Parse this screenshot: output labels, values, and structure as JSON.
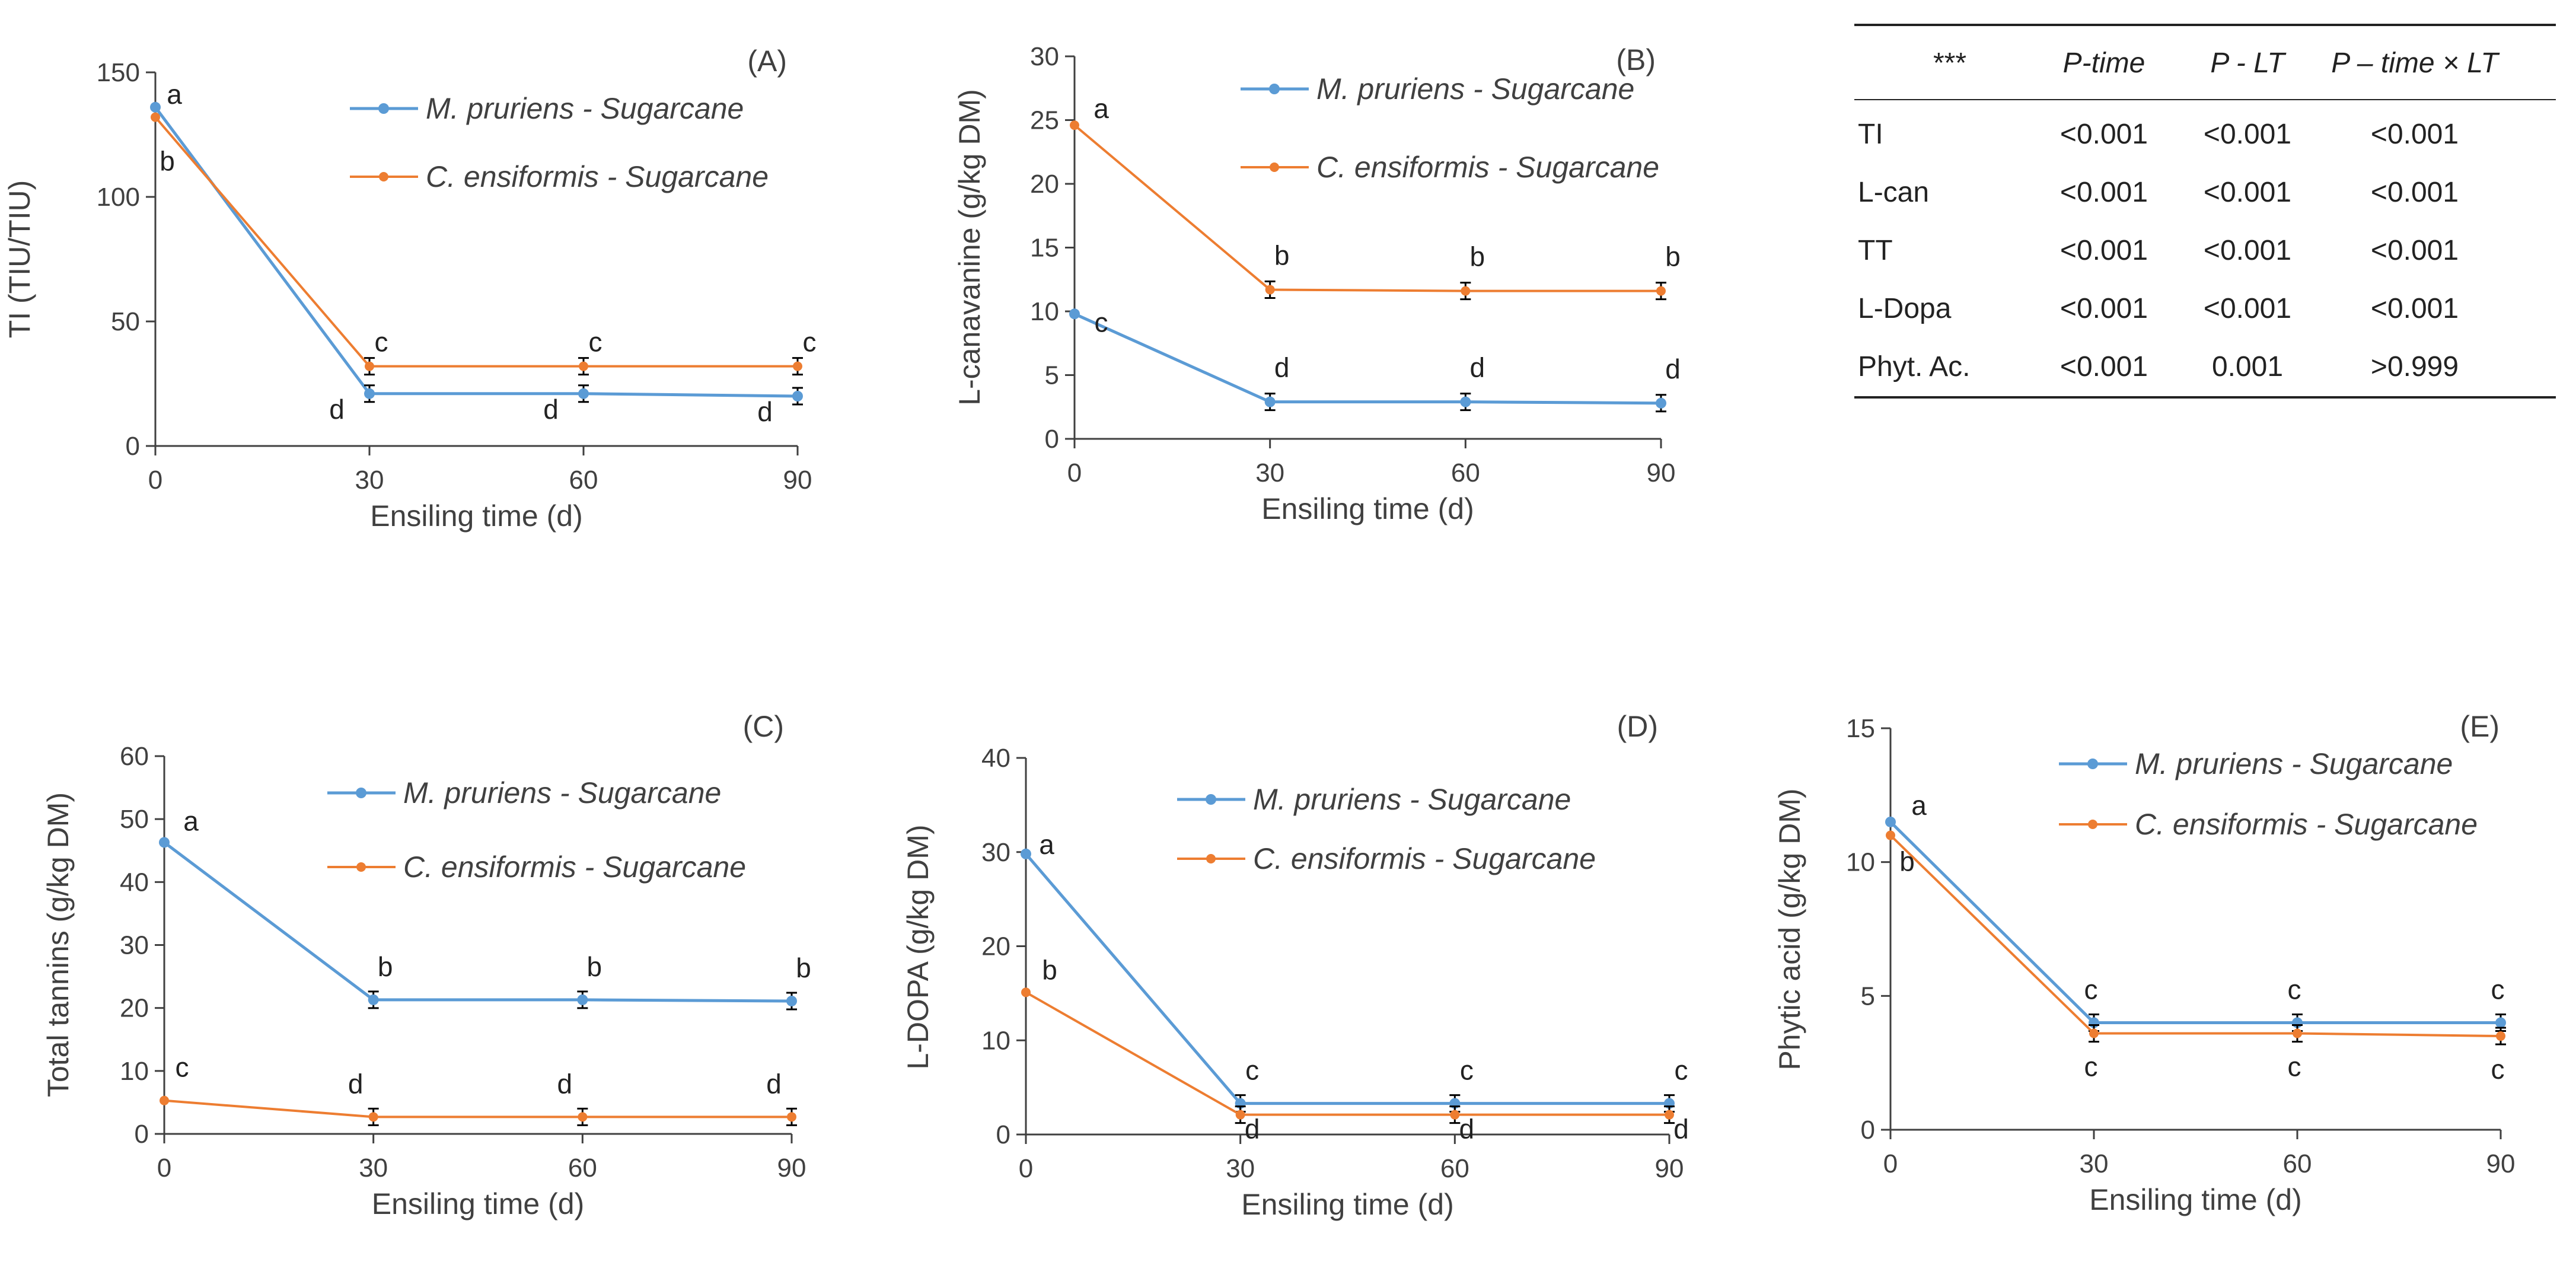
{
  "colors": {
    "m_pruriens": "#5B9BD5",
    "c_ensiformis": "#ED7D31",
    "axis": "#404040",
    "text": "#404040"
  },
  "chart_data": [
    {
      "id": "A",
      "type": "line",
      "panel_label": "(A)",
      "title": "",
      "xlabel": "Ensiling time (d)",
      "ylabel": "TI (TIU/TIU)",
      "x": [
        0,
        30,
        60,
        90
      ],
      "xticks": [
        "0",
        "30",
        "60",
        "90"
      ],
      "ylim": [
        0,
        150
      ],
      "yticks": [
        "0",
        "50",
        "100",
        "150"
      ],
      "series": [
        {
          "name": "M. pruriens - Sugarcane",
          "values": [
            136,
            21,
            21,
            20
          ],
          "letters": [
            "a",
            "d",
            "d",
            "d"
          ]
        },
        {
          "name": "C. ensiformis - Sugarcane",
          "values": [
            132,
            32,
            32,
            32
          ],
          "letters": [
            "b",
            "c",
            "c",
            "c"
          ]
        }
      ]
    },
    {
      "id": "B",
      "type": "line",
      "panel_label": "(B)",
      "title": "",
      "xlabel": "Ensiling time (d)",
      "ylabel": "L-canavanine (g/kg DM)",
      "x": [
        0,
        30,
        60,
        90
      ],
      "xticks": [
        "0",
        "30",
        "60",
        "90"
      ],
      "ylim": [
        0,
        30
      ],
      "yticks": [
        "0",
        "5",
        "10",
        "15",
        "20",
        "25",
        "30"
      ],
      "series": [
        {
          "name": "M. pruriens - Sugarcane",
          "values": [
            9.8,
            2.9,
            2.9,
            2.8
          ],
          "letters": [
            "c",
            "d",
            "d",
            "d"
          ]
        },
        {
          "name": "C. ensiformis - Sugarcane",
          "values": [
            24.6,
            11.7,
            11.6,
            11.6
          ],
          "letters": [
            "a",
            "b",
            "b",
            "b"
          ]
        }
      ]
    },
    {
      "id": "C",
      "type": "line",
      "panel_label": "(C)",
      "title": "",
      "xlabel": "Ensiling time (d)",
      "ylabel": "Total tannins (g/kg DM)",
      "x": [
        0,
        30,
        60,
        90
      ],
      "xticks": [
        "0",
        "30",
        "60",
        "90"
      ],
      "ylim": [
        0,
        60
      ],
      "yticks": [
        "0",
        "10",
        "20",
        "30",
        "40",
        "50",
        "60"
      ],
      "series": [
        {
          "name": "M. pruriens - Sugarcane",
          "values": [
            46.3,
            21.3,
            21.3,
            21.1
          ],
          "letters": [
            "a",
            "b",
            "b",
            "b"
          ]
        },
        {
          "name": "C. ensiformis - Sugarcane",
          "values": [
            5.3,
            2.7,
            2.7,
            2.7
          ],
          "letters": [
            "c",
            "d",
            "d",
            "d"
          ]
        }
      ]
    },
    {
      "id": "D",
      "type": "line",
      "panel_label": "(D)",
      "title": "",
      "xlabel": "Ensiling time (d)",
      "ylabel": "L-DOPA (g/kg DM)",
      "x": [
        0,
        30,
        60,
        90
      ],
      "xticks": [
        "0",
        "30",
        "60",
        "90"
      ],
      "ylim": [
        0,
        40
      ],
      "yticks": [
        "0",
        "10",
        "20",
        "30",
        "40"
      ],
      "series": [
        {
          "name": "M. pruriens - Sugarcane",
          "values": [
            29.8,
            3.3,
            3.3,
            3.3
          ],
          "letters": [
            "a",
            "c",
            "c",
            "c"
          ]
        },
        {
          "name": "C. ensiformis - Sugarcane",
          "values": [
            15.1,
            2.1,
            2.1,
            2.1
          ],
          "letters": [
            "b",
            "d",
            "d",
            "d"
          ]
        }
      ]
    },
    {
      "id": "E",
      "type": "line",
      "panel_label": "(E)",
      "title": "",
      "xlabel": "Ensiling time (d)",
      "ylabel": "Phytic acid (g/kg DM)",
      "x": [
        0,
        30,
        60,
        90
      ],
      "xticks": [
        "0",
        "30",
        "60",
        "90"
      ],
      "ylim": [
        0,
        15
      ],
      "yticks": [
        "0",
        "5",
        "10",
        "15"
      ],
      "series": [
        {
          "name": "M. pruriens - Sugarcane",
          "values": [
            11.5,
            4.0,
            4.0,
            4.0
          ],
          "letters": [
            "a",
            "c",
            "c",
            "c"
          ]
        },
        {
          "name": "C. ensiformis - Sugarcane",
          "values": [
            11.0,
            3.6,
            3.6,
            3.5
          ],
          "letters": [
            "b",
            "c",
            "c",
            "c"
          ]
        }
      ]
    }
  ],
  "stats_table": {
    "headers": [
      "***",
      "P-time",
      "P - LT",
      "P – time × LT"
    ],
    "rows": [
      [
        "TI",
        "<0.001",
        "<0.001",
        "<0.001"
      ],
      [
        "L-can",
        "<0.001",
        "<0.001",
        "<0.001"
      ],
      [
        "TT",
        "<0.001",
        "<0.001",
        "<0.001"
      ],
      [
        "L-Dopa",
        "<0.001",
        "<0.001",
        "<0.001"
      ],
      [
        "Phyt. Ac.",
        "<0.001",
        "0.001",
        ">0.999"
      ]
    ]
  }
}
